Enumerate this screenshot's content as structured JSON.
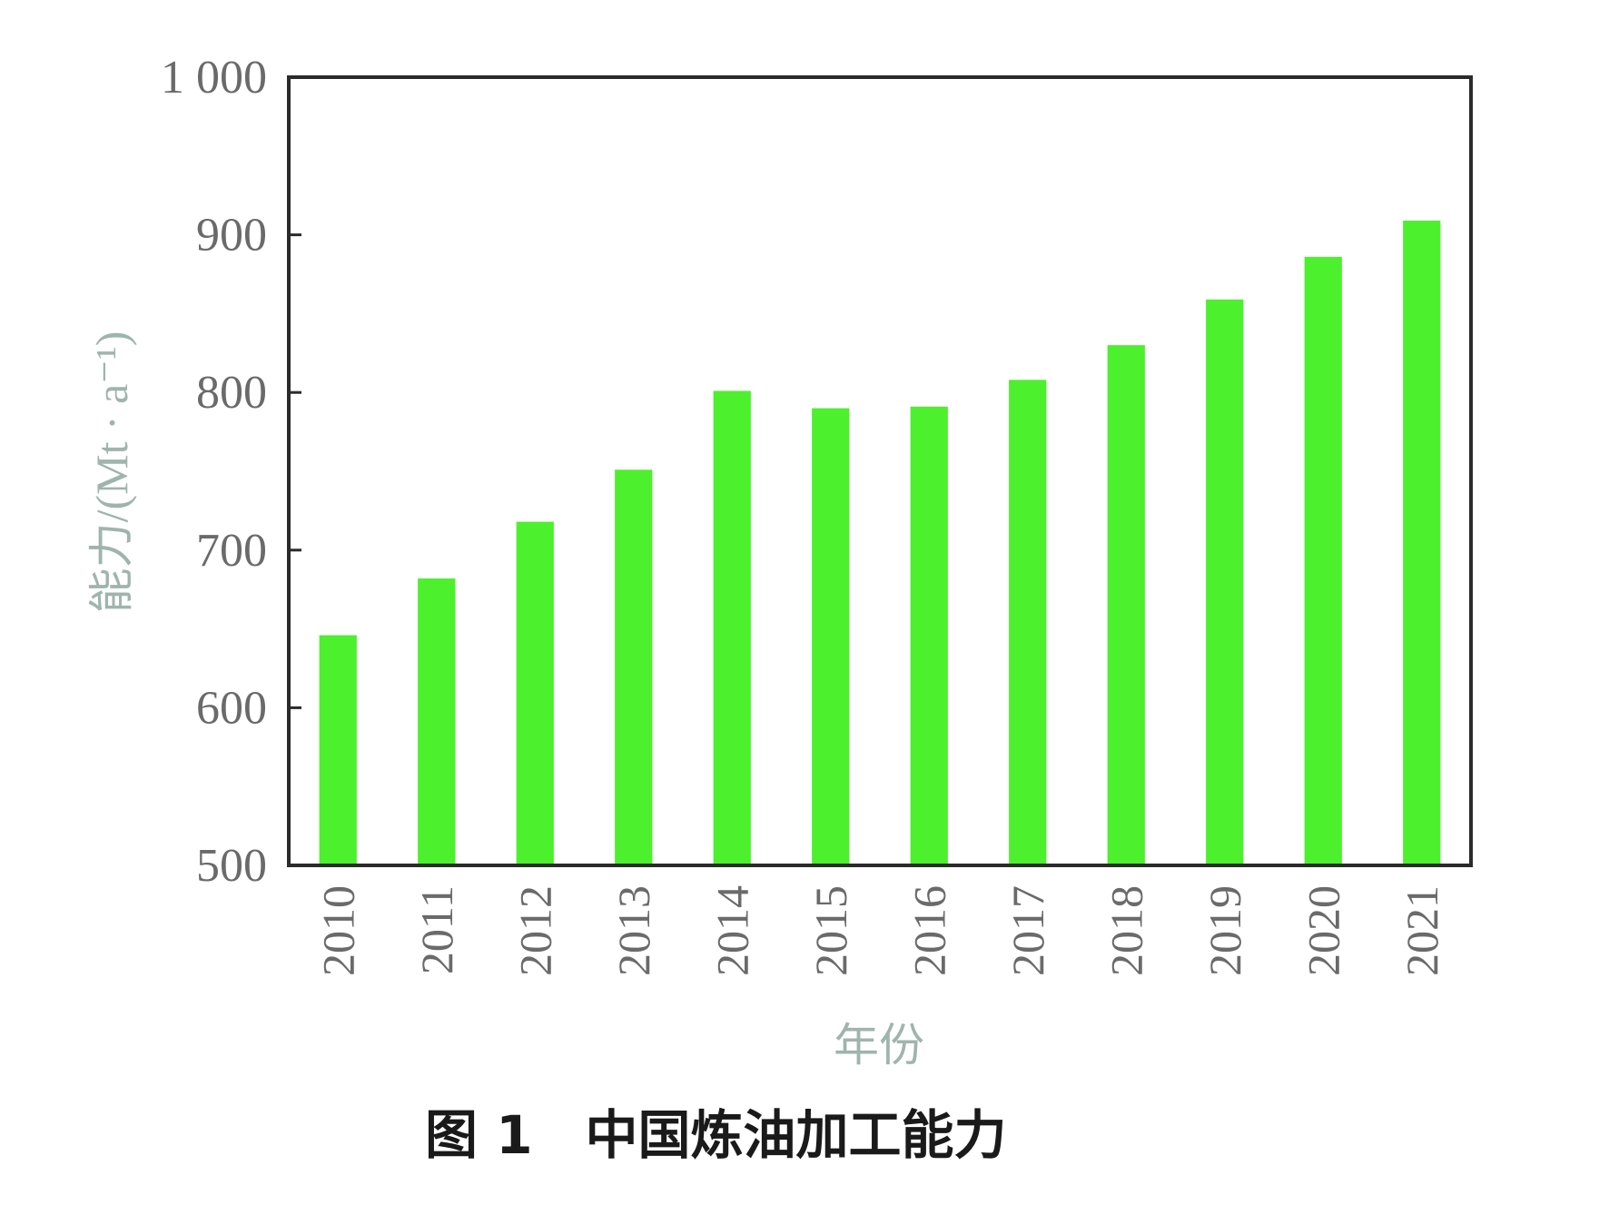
{
  "chart_data": {
    "type": "bar",
    "categories": [
      "2010",
      "2011",
      "2012",
      "2013",
      "2014",
      "2015",
      "2016",
      "2017",
      "2018",
      "2019",
      "2020",
      "2021"
    ],
    "values": [
      646,
      682,
      718,
      751,
      801,
      790,
      791,
      808,
      830,
      859,
      886,
      909
    ],
    "xlabel": "年份",
    "ylabel": "能力/(Mt · a⁻¹)",
    "ylim": [
      500,
      1000
    ],
    "yticks": [
      500,
      600,
      700,
      800,
      900,
      1000
    ],
    "ytick_labels": [
      "500",
      "600",
      "700",
      "800",
      "900",
      "1 000"
    ],
    "grid": false,
    "bar_color": "#4cf02c",
    "caption": "图 1　中国炼油加工能力"
  }
}
